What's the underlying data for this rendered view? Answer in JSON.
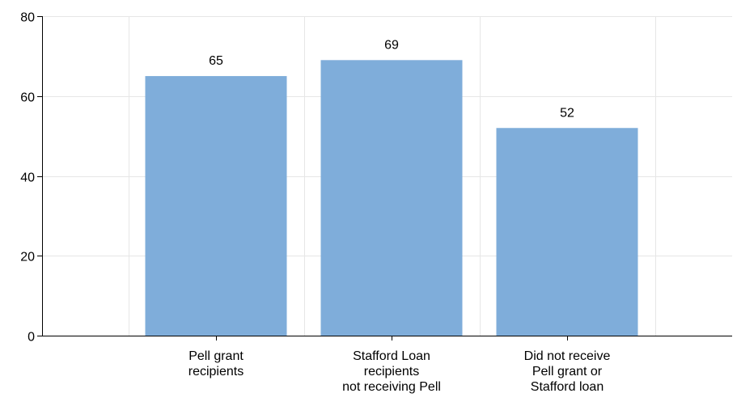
{
  "chart_data": {
    "type": "bar",
    "title": "",
    "xlabel": "",
    "ylabel": "",
    "categories": [
      [
        "Pell grant",
        "recipients"
      ],
      [
        "Stafford Loan",
        "recipients",
        "not receiving Pell"
      ],
      [
        "Did not receive",
        "Pell grant or",
        "Stafford loan"
      ]
    ],
    "values": [
      65,
      69,
      52
    ],
    "data_labels": [
      "65",
      "69",
      "52"
    ],
    "ylim": [
      0,
      80
    ],
    "yticks": [
      0,
      20,
      40,
      60,
      80
    ],
    "ytick_labels": [
      "0",
      "20",
      "40",
      "60",
      "80"
    ],
    "grid": true,
    "legend": "none",
    "bar_color": "#7fadda",
    "grid_color": "#e6e6e6",
    "axis_color": "#000000"
  }
}
